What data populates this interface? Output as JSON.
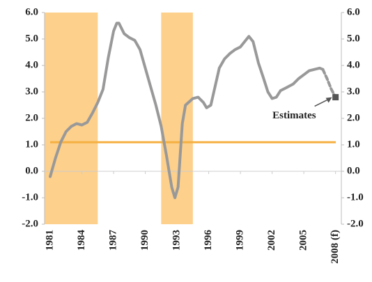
{
  "chart_data": {
    "type": "line",
    "x": [
      1981,
      1981.5,
      1982,
      1982.5,
      1983,
      1983.5,
      1984,
      1984.5,
      1985,
      1985.5,
      1986,
      1986.5,
      1987,
      1987.3,
      1987.5,
      1988,
      1988.5,
      1989,
      1989.5,
      1990,
      1990.5,
      1991,
      1991.5,
      1992,
      1992.5,
      1992.8,
      1993.1,
      1993.5,
      1993.8,
      1994.5,
      1995,
      1995.5,
      1995.8,
      1996.2,
      1996.6,
      1997,
      1997.5,
      1998,
      1998.5,
      1999,
      1999.5,
      1999.8,
      2000.2,
      2000.7,
      2001.2,
      2001.6,
      2002,
      2002.4,
      2002.8,
      2003.3,
      2004,
      2004.5,
      2005,
      2005.5,
      2006,
      2006.5,
      2006.8,
      2007.2,
      2007.6,
      2008
    ],
    "series": [
      {
        "color": "#999999",
        "values": [
          -0.2,
          0.5,
          1.1,
          1.5,
          1.7,
          1.8,
          1.75,
          1.85,
          2.2,
          2.6,
          3.1,
          4.3,
          5.3,
          5.6,
          5.6,
          5.2,
          5.05,
          4.95,
          4.6,
          3.9,
          3.2,
          2.5,
          1.7,
          0.6,
          -0.6,
          -1.0,
          -0.6,
          1.8,
          2.5,
          2.75,
          2.8,
          2.6,
          2.4,
          2.5,
          3.2,
          3.9,
          4.25,
          4.45,
          4.6,
          4.7,
          4.95,
          5.1,
          4.9,
          4.1,
          3.5,
          3.0,
          2.75,
          2.8,
          3.05,
          3.15,
          3.3,
          3.5,
          3.65,
          3.8,
          3.85,
          3.9,
          3.85,
          null,
          null,
          null
        ]
      },
      {
        "color": "#999999",
        "dashed": true,
        "end_marker_color": "#555555",
        "values": [
          null,
          null,
          null,
          null,
          null,
          null,
          null,
          null,
          null,
          null,
          null,
          null,
          null,
          null,
          null,
          null,
          null,
          null,
          null,
          null,
          null,
          null,
          null,
          null,
          null,
          null,
          null,
          null,
          null,
          null,
          null,
          null,
          null,
          null,
          null,
          null,
          null,
          null,
          null,
          null,
          null,
          null,
          null,
          null,
          null,
          null,
          null,
          null,
          null,
          null,
          null,
          null,
          null,
          null,
          null,
          null,
          3.85,
          3.5,
          3.1,
          2.8
        ]
      }
    ],
    "bands": [
      [
        1980.5,
        1985.5
      ],
      [
        1991.5,
        1994.5
      ]
    ],
    "band_color": "#fdd08c",
    "reference_line": {
      "value": 1.1,
      "color": "#f5b041"
    },
    "annotation": {
      "text": "Estimates",
      "x": 2008,
      "y": 2.8
    },
    "xlim": [
      1980.47,
      2008.55
    ],
    "xticks": [
      1981,
      1984,
      1987,
      1990,
      1993,
      1996,
      1999,
      2002,
      2005,
      {
        "value": 2008,
        "label": "2008 (f)"
      }
    ],
    "ylim": [
      -2,
      6
    ],
    "yticks": [
      {
        "value": -2,
        "label": "-2.0"
      },
      {
        "value": -1,
        "label": "-1.0"
      },
      {
        "value": 0,
        "label": "0.0"
      },
      {
        "value": 1,
        "label": "1.0"
      },
      {
        "value": 2,
        "label": "2.0"
      },
      {
        "value": 3,
        "label": "3.0"
      },
      {
        "value": 4,
        "label": "4.0"
      },
      {
        "value": 5,
        "label": "5.0"
      },
      {
        "value": 6,
        "label": "6.0"
      }
    ]
  }
}
